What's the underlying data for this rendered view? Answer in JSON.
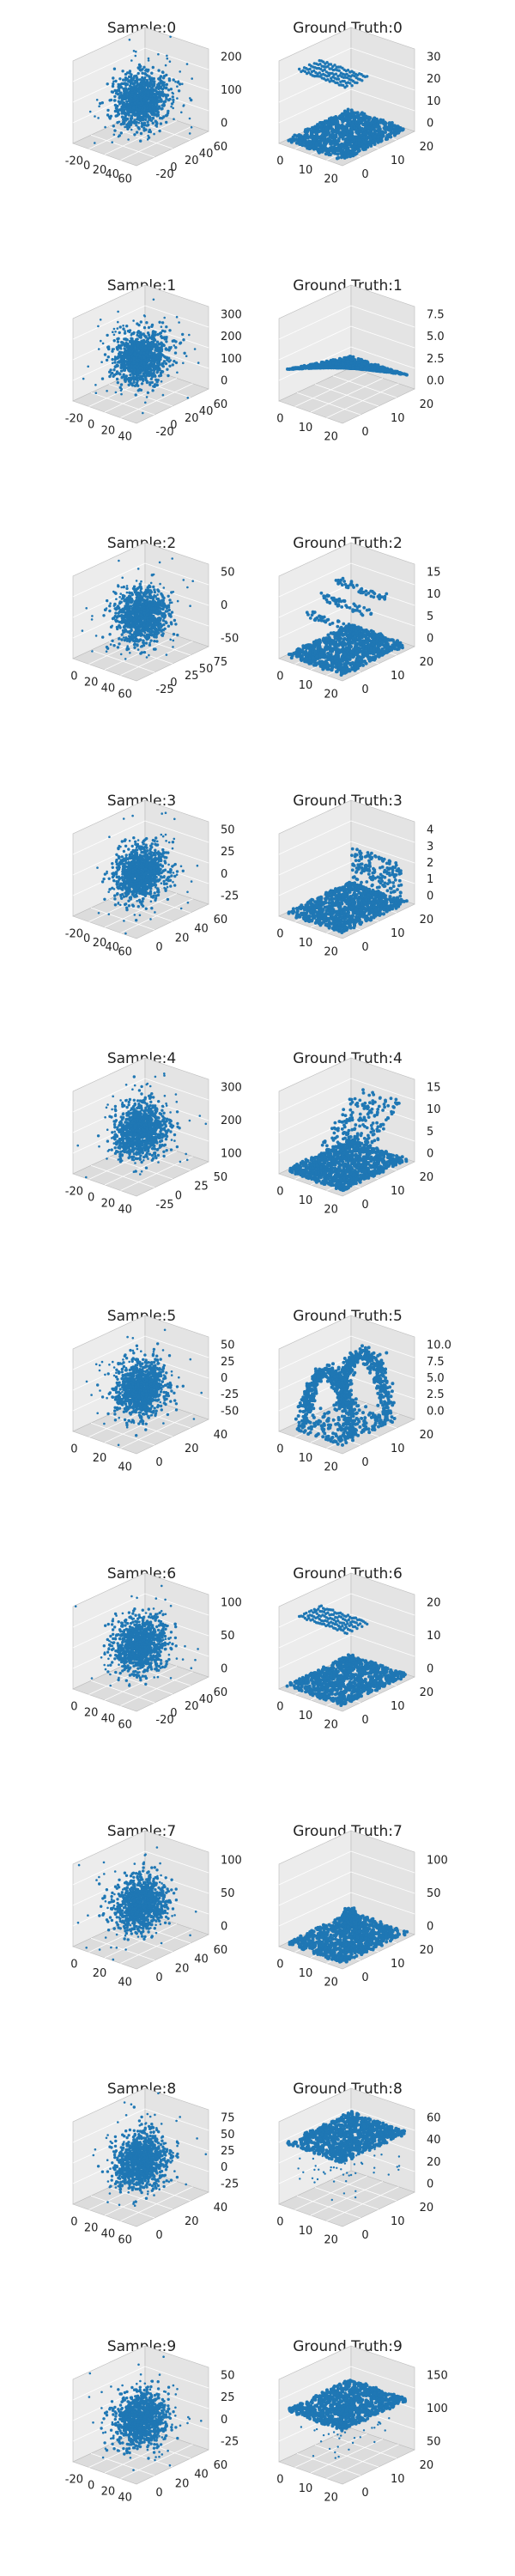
{
  "figure": {
    "point_color": "#1f77b4",
    "pane_colors": {
      "left": "#ececec",
      "right": "#e4e4e4",
      "floor": "#dcdcdc",
      "grid": "#ffffff",
      "edge": "#bbbbbb"
    },
    "panels": [
      {
        "title": "Sample:0",
        "kind": "sample",
        "x_ticks": [
          "-20",
          "0",
          "20",
          "40",
          "60"
        ],
        "y_ticks": [
          "-20",
          "0",
          "20",
          "40",
          "60"
        ],
        "z_ticks": [
          "0",
          "100",
          "200"
        ]
      },
      {
        "title": "Ground Truth:0",
        "kind": "truth",
        "variant": "floating-rows",
        "x_ticks": [
          "0",
          "10",
          "20"
        ],
        "y_ticks": [
          "0",
          "10",
          "20"
        ],
        "z_ticks": [
          "0",
          "10",
          "20",
          "30"
        ]
      },
      {
        "title": "Sample:1",
        "kind": "sample",
        "x_ticks": [
          "-20",
          "0",
          "20",
          "40"
        ],
        "y_ticks": [
          "-20",
          "0",
          "20",
          "40",
          "60"
        ],
        "z_ticks": [
          "0",
          "100",
          "200",
          "300"
        ]
      },
      {
        "title": "Ground Truth:1",
        "kind": "truth",
        "variant": "tilted-sheet",
        "x_ticks": [
          "0",
          "10",
          "20"
        ],
        "y_ticks": [
          "0",
          "10",
          "20"
        ],
        "z_ticks": [
          "0.0",
          "2.5",
          "5.0",
          "7.5"
        ]
      },
      {
        "title": "Sample:2",
        "kind": "sample",
        "x_ticks": [
          "0",
          "20",
          "40",
          "60"
        ],
        "y_ticks": [
          "-25",
          "0",
          "25",
          "50",
          "75"
        ],
        "z_ticks": [
          "-50",
          "0",
          "50"
        ]
      },
      {
        "title": "Ground Truth:2",
        "kind": "truth",
        "variant": "bars",
        "x_ticks": [
          "0",
          "10",
          "20"
        ],
        "y_ticks": [
          "0",
          "10",
          "20"
        ],
        "z_ticks": [
          "0",
          "5",
          "10",
          "15"
        ]
      },
      {
        "title": "Sample:3",
        "kind": "sample",
        "x_ticks": [
          "-20",
          "0",
          "20",
          "40",
          "60"
        ],
        "y_ticks": [
          "0",
          "20",
          "40",
          "60"
        ],
        "z_ticks": [
          "-25",
          "0",
          "25",
          "50"
        ]
      },
      {
        "title": "Ground Truth:3",
        "kind": "truth",
        "variant": "edge-wall",
        "x_ticks": [
          "0",
          "10",
          "20"
        ],
        "y_ticks": [
          "0",
          "10",
          "20"
        ],
        "z_ticks": [
          "0",
          "1",
          "2",
          "3",
          "4"
        ]
      },
      {
        "title": "Sample:4",
        "kind": "sample",
        "x_ticks": [
          "-20",
          "0",
          "20",
          "40"
        ],
        "y_ticks": [
          "-25",
          "0",
          "25",
          "50"
        ],
        "z_ticks": [
          "100",
          "200",
          "300"
        ]
      },
      {
        "title": "Ground Truth:4",
        "kind": "truth",
        "variant": "ramp",
        "x_ticks": [
          "0",
          "10",
          "20"
        ],
        "y_ticks": [
          "0",
          "10",
          "20"
        ],
        "z_ticks": [
          "0",
          "5",
          "10",
          "15"
        ]
      },
      {
        "title": "Sample:5",
        "kind": "sample",
        "x_ticks": [
          "0",
          "20",
          "40"
        ],
        "y_ticks": [
          "0",
          "20",
          "40"
        ],
        "z_ticks": [
          "-50",
          "-25",
          "0",
          "25",
          "50"
        ]
      },
      {
        "title": "Ground Truth:5",
        "kind": "truth",
        "variant": "arch",
        "x_ticks": [
          "0",
          "10",
          "20"
        ],
        "y_ticks": [
          "0",
          "10",
          "20"
        ],
        "z_ticks": [
          "0.0",
          "2.5",
          "5.0",
          "7.5",
          "10.0"
        ]
      },
      {
        "title": "Sample:6",
        "kind": "sample",
        "x_ticks": [
          "0",
          "20",
          "40",
          "60"
        ],
        "y_ticks": [
          "-20",
          "0",
          "20",
          "40",
          "60"
        ],
        "z_ticks": [
          "0",
          "50",
          "100"
        ]
      },
      {
        "title": "Ground Truth:6",
        "kind": "truth",
        "variant": "floating-rows",
        "x_ticks": [
          "0",
          "10",
          "20"
        ],
        "y_ticks": [
          "0",
          "10",
          "20"
        ],
        "z_ticks": [
          "0",
          "10",
          "20"
        ]
      },
      {
        "title": "Sample:7",
        "kind": "sample",
        "x_ticks": [
          "0",
          "20",
          "40"
        ],
        "y_ticks": [
          "0",
          "20",
          "40",
          "60"
        ],
        "z_ticks": [
          "0",
          "50",
          "100"
        ]
      },
      {
        "title": "Ground Truth:7",
        "kind": "truth",
        "variant": "small-box",
        "x_ticks": [
          "0",
          "10",
          "20"
        ],
        "y_ticks": [
          "0",
          "10",
          "20"
        ],
        "z_ticks": [
          "0",
          "50",
          "100"
        ]
      },
      {
        "title": "Sample:8",
        "kind": "sample",
        "x_ticks": [
          "0",
          "20",
          "40",
          "60"
        ],
        "y_ticks": [
          "0",
          "20",
          "40"
        ],
        "z_ticks": [
          "-25",
          "0",
          "25",
          "50",
          "75"
        ]
      },
      {
        "title": "Ground Truth:8",
        "kind": "truth",
        "variant": "raised-slab",
        "x_ticks": [
          "0",
          "10",
          "20"
        ],
        "y_ticks": [
          "0",
          "10",
          "20"
        ],
        "z_ticks": [
          "0",
          "20",
          "40",
          "60"
        ]
      },
      {
        "title": "Sample:9",
        "kind": "sample",
        "x_ticks": [
          "-20",
          "0",
          "20",
          "40"
        ],
        "y_ticks": [
          "0",
          "20",
          "40",
          "60"
        ],
        "z_ticks": [
          "-25",
          "0",
          "25",
          "50"
        ]
      },
      {
        "title": "Ground Truth:9",
        "kind": "truth",
        "variant": "high-slab",
        "x_ticks": [
          "0",
          "10",
          "20"
        ],
        "y_ticks": [
          "0",
          "10",
          "20"
        ],
        "z_ticks": [
          "50",
          "100",
          "150"
        ]
      }
    ]
  },
  "chart_data": [
    {
      "type": "scatter",
      "title": "Sample:0",
      "projection": "3d",
      "xlim": [
        -20,
        60
      ],
      "ylim": [
        -20,
        60
      ],
      "zlim": [
        -20,
        260
      ],
      "shape": "dense gaussian blob centred near (20, 20, 100)"
    },
    {
      "type": "scatter",
      "title": "Ground Truth:0",
      "projection": "3d",
      "xlim": [
        0,
        28
      ],
      "ylim": [
        0,
        28
      ],
      "zlim": [
        0,
        35
      ],
      "shape": "flat plane at z≈0 with floating rows near z≈30"
    },
    {
      "type": "scatter",
      "title": "Sample:1",
      "projection": "3d",
      "xlim": [
        -20,
        50
      ],
      "ylim": [
        -20,
        60
      ],
      "zlim": [
        -20,
        320
      ],
      "shape": "dense gaussian blob"
    },
    {
      "type": "scatter",
      "title": "Ground Truth:1",
      "projection": "3d",
      "xlim": [
        0,
        28
      ],
      "ylim": [
        0,
        28
      ],
      "zlim": [
        -1,
        9
      ],
      "shape": "tilted plane"
    },
    {
      "type": "scatter",
      "title": "Sample:2",
      "projection": "3d",
      "xlim": [
        -10,
        60
      ],
      "ylim": [
        -25,
        75
      ],
      "zlim": [
        -80,
        80
      ],
      "shape": "dense gaussian blob"
    },
    {
      "type": "scatter",
      "title": "Ground Truth:2",
      "projection": "3d",
      "xlim": [
        0,
        28
      ],
      "ylim": [
        0,
        28
      ],
      "zlim": [
        0,
        16
      ],
      "shape": "plane with raised bar structures"
    },
    {
      "type": "scatter",
      "title": "Sample:3",
      "projection": "3d",
      "xlim": [
        -20,
        60
      ],
      "ylim": [
        -10,
        60
      ],
      "zlim": [
        -40,
        60
      ],
      "shape": "dense gaussian blob"
    },
    {
      "type": "scatter",
      "title": "Ground Truth:3",
      "projection": "3d",
      "xlim": [
        0,
        28
      ],
      "ylim": [
        0,
        28
      ],
      "zlim": [
        0,
        4.5
      ],
      "shape": "plane with raised edge wall"
    },
    {
      "type": "scatter",
      "title": "Sample:4",
      "projection": "3d",
      "xlim": [
        -25,
        50
      ],
      "ylim": [
        -25,
        60
      ],
      "zlim": [
        0,
        330
      ],
      "shape": "dense gaussian blob"
    },
    {
      "type": "scatter",
      "title": "Ground Truth:4",
      "projection": "3d",
      "xlim": [
        0,
        28
      ],
      "ylim": [
        0,
        28
      ],
      "zlim": [
        0,
        18
      ],
      "shape": "plane with rising ramp"
    },
    {
      "type": "scatter",
      "title": "Sample:5",
      "projection": "3d",
      "xlim": [
        -5,
        55
      ],
      "ylim": [
        -5,
        50
      ],
      "zlim": [
        -55,
        55
      ],
      "shape": "dense gaussian blob"
    },
    {
      "type": "scatter",
      "title": "Ground Truth:5",
      "projection": "3d",
      "xlim": [
        0,
        28
      ],
      "ylim": [
        0,
        28
      ],
      "zlim": [
        0,
        11
      ],
      "shape": "arch / looped structure"
    },
    {
      "type": "scatter",
      "title": "Sample:6",
      "projection": "3d",
      "xlim": [
        -5,
        65
      ],
      "ylim": [
        -20,
        60
      ],
      "zlim": [
        -20,
        110
      ],
      "shape": "dense gaussian blob"
    },
    {
      "type": "scatter",
      "title": "Ground Truth:6",
      "projection": "3d",
      "xlim": [
        0,
        28
      ],
      "ylim": [
        0,
        28
      ],
      "zlim": [
        0,
        25
      ],
      "shape": "flat plane with floating rows near z≈20"
    },
    {
      "type": "scatter",
      "title": "Sample:7",
      "projection": "3d",
      "xlim": [
        -10,
        50
      ],
      "ylim": [
        -5,
        60
      ],
      "zlim": [
        -20,
        120
      ],
      "shape": "dense gaussian blob"
    },
    {
      "type": "scatter",
      "title": "Ground Truth:7",
      "projection": "3d",
      "xlim": [
        0,
        28
      ],
      "ylim": [
        0,
        28
      ],
      "zlim": [
        -10,
        120
      ],
      "shape": "plane with small raised box"
    },
    {
      "type": "scatter",
      "title": "Sample:8",
      "projection": "3d",
      "xlim": [
        -5,
        65
      ],
      "ylim": [
        -5,
        50
      ],
      "zlim": [
        -40,
        85
      ],
      "shape": "dense gaussian blob"
    },
    {
      "type": "scatter",
      "title": "Ground Truth:8",
      "projection": "3d",
      "xlim": [
        0,
        28
      ],
      "ylim": [
        0,
        28
      ],
      "zlim": [
        -10,
        70
      ],
      "shape": "slab raised near z≈50"
    },
    {
      "type": "scatter",
      "title": "Sample:9",
      "projection": "3d",
      "xlim": [
        -25,
        50
      ],
      "ylim": [
        -5,
        60
      ],
      "zlim": [
        -40,
        60
      ],
      "shape": "dense gaussian blob"
    },
    {
      "type": "scatter",
      "title": "Ground Truth:9",
      "projection": "3d",
      "xlim": [
        0,
        28
      ],
      "ylim": [
        0,
        28
      ],
      "zlim": [
        0,
        160
      ],
      "shape": "slab raised near z≈100"
    }
  ]
}
